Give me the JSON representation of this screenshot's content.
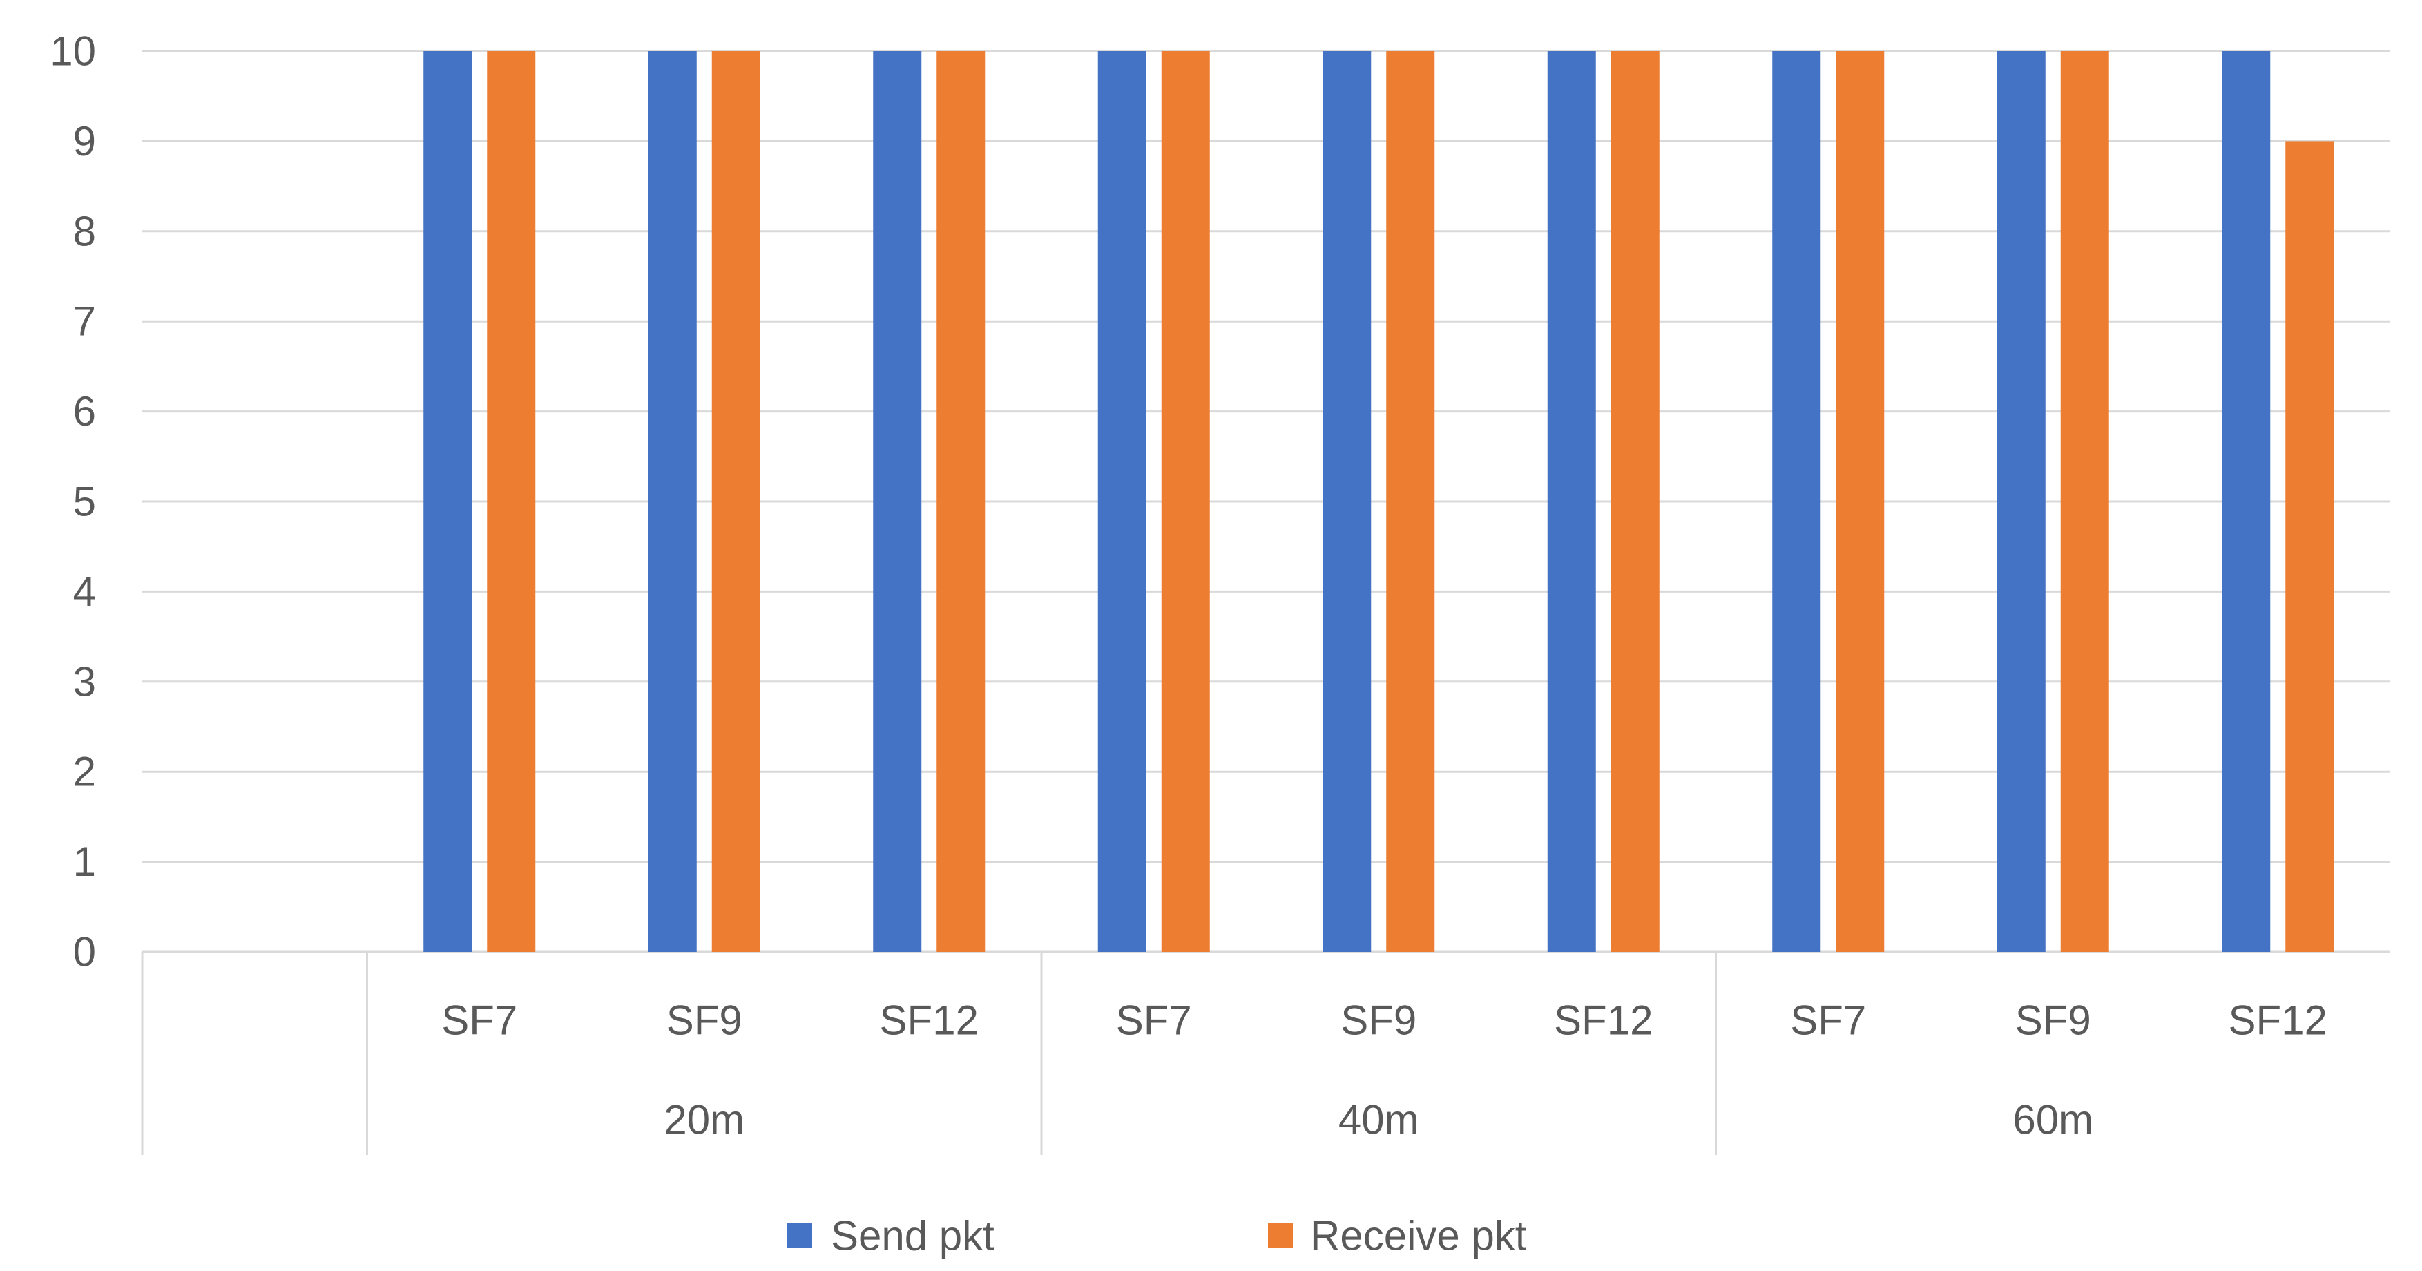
{
  "chart_data": {
    "type": "bar",
    "categories": [
      "",
      "SF7",
      "SF9",
      "SF12",
      "SF7",
      "SF9",
      "SF12",
      "SF7",
      "SF9",
      "SF12"
    ],
    "category_groups": [
      {
        "label": "20m",
        "from": 1,
        "to": 3
      },
      {
        "label": "40m",
        "from": 4,
        "to": 6
      },
      {
        "label": "60m",
        "from": 7,
        "to": 9
      }
    ],
    "series": [
      {
        "name": "Send pkt",
        "color": "#4472C4",
        "values": [
          null,
          10,
          10,
          10,
          10,
          10,
          10,
          10,
          10,
          10
        ]
      },
      {
        "name": "Receive pkt",
        "color": "#ED7D31",
        "values": [
          null,
          10,
          10,
          10,
          10,
          10,
          10,
          10,
          10,
          9
        ]
      }
    ],
    "yticks": [
      0,
      1,
      2,
      3,
      4,
      5,
      6,
      7,
      8,
      9,
      10
    ],
    "ylim": [
      0,
      10
    ],
    "grid": true,
    "legend": "bottom"
  }
}
